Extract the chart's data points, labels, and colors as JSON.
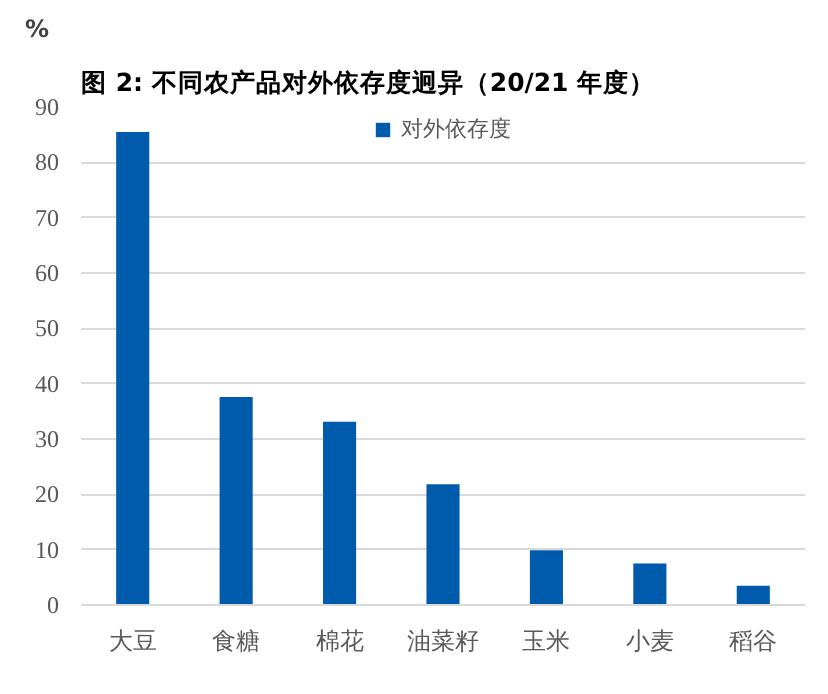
{
  "chart_data": {
    "type": "bar",
    "title": "图 2:  不同农产品对外依存度迥异（20/21 年度）",
    "ylabel": "%",
    "categories": [
      "大豆",
      "食糖",
      "棉花",
      "油菜籽",
      "玉米",
      "小麦",
      "稻谷"
    ],
    "series": [
      {
        "name": "对外依存度",
        "color": "#005bac",
        "values": [
          85.5,
          37.6,
          33.1,
          21.8,
          9.9,
          7.5,
          3.5
        ]
      }
    ],
    "ylim": [
      0,
      90
    ],
    "yticks": [
      0,
      10,
      20,
      30,
      40,
      50,
      60,
      70,
      80,
      90
    ],
    "grid": "y",
    "legend": "top"
  }
}
